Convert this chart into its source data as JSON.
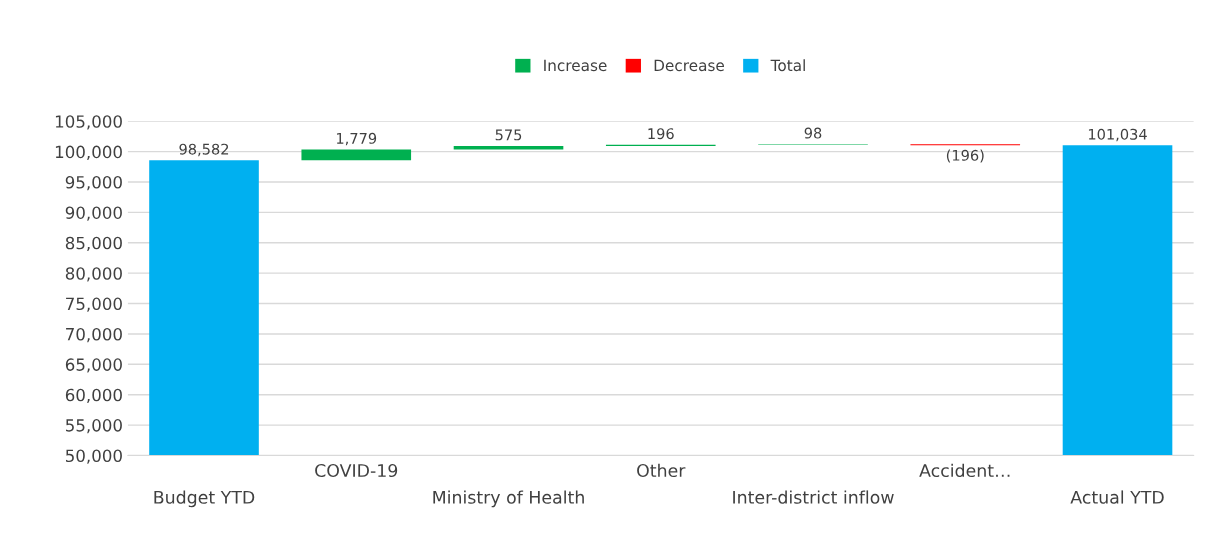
{
  "chart_data": {
    "type": "bar",
    "categories": [
      "Budget YTD",
      "COVID-19",
      "Ministry of Health",
      "Other",
      "Inter-district inflow",
      "Accident…",
      "Actual YTD"
    ],
    "series": [
      {
        "name": "Increase",
        "color": "#00b050",
        "base": [
          null,
          98582,
          100361,
          100936,
          101132,
          null,
          null
        ],
        "values": [
          null,
          1779,
          575,
          196,
          98,
          null,
          null
        ],
        "value_labels": [
          null,
          "1,779",
          "575",
          "196",
          "98",
          null,
          null
        ]
      },
      {
        "name": "Decrease",
        "color": "#ff0000",
        "base": [
          null,
          null,
          null,
          null,
          null,
          101230,
          null
        ],
        "values": [
          null,
          null,
          null,
          null,
          null,
          -196,
          null
        ],
        "value_labels": [
          null,
          null,
          null,
          null,
          null,
          "(196)",
          null
        ]
      },
      {
        "name": "Total",
        "color": "#00b0f0",
        "values": [
          98582,
          null,
          null,
          null,
          null,
          null,
          101034
        ],
        "value_labels": [
          "98,582",
          null,
          null,
          null,
          null,
          null,
          "101,034"
        ]
      }
    ],
    "ylim": [
      50000,
      105000
    ],
    "yticks": [
      {
        "value": 50000,
        "label": "50,000"
      },
      {
        "value": 55000,
        "label": "55,000"
      },
      {
        "value": 60000,
        "label": "60,000"
      },
      {
        "value": 65000,
        "label": "65,000"
      },
      {
        "value": 70000,
        "label": "70,000"
      },
      {
        "value": 75000,
        "label": "75,000"
      },
      {
        "value": 80000,
        "label": "80,000"
      },
      {
        "value": 85000,
        "label": "85,000"
      },
      {
        "value": 90000,
        "label": "90,000"
      },
      {
        "value": 95000,
        "label": "95,000"
      },
      {
        "value": 100000,
        "label": "100,000"
      },
      {
        "value": 105000,
        "label": "105,000"
      }
    ],
    "grid": "y",
    "legend": "top"
  }
}
